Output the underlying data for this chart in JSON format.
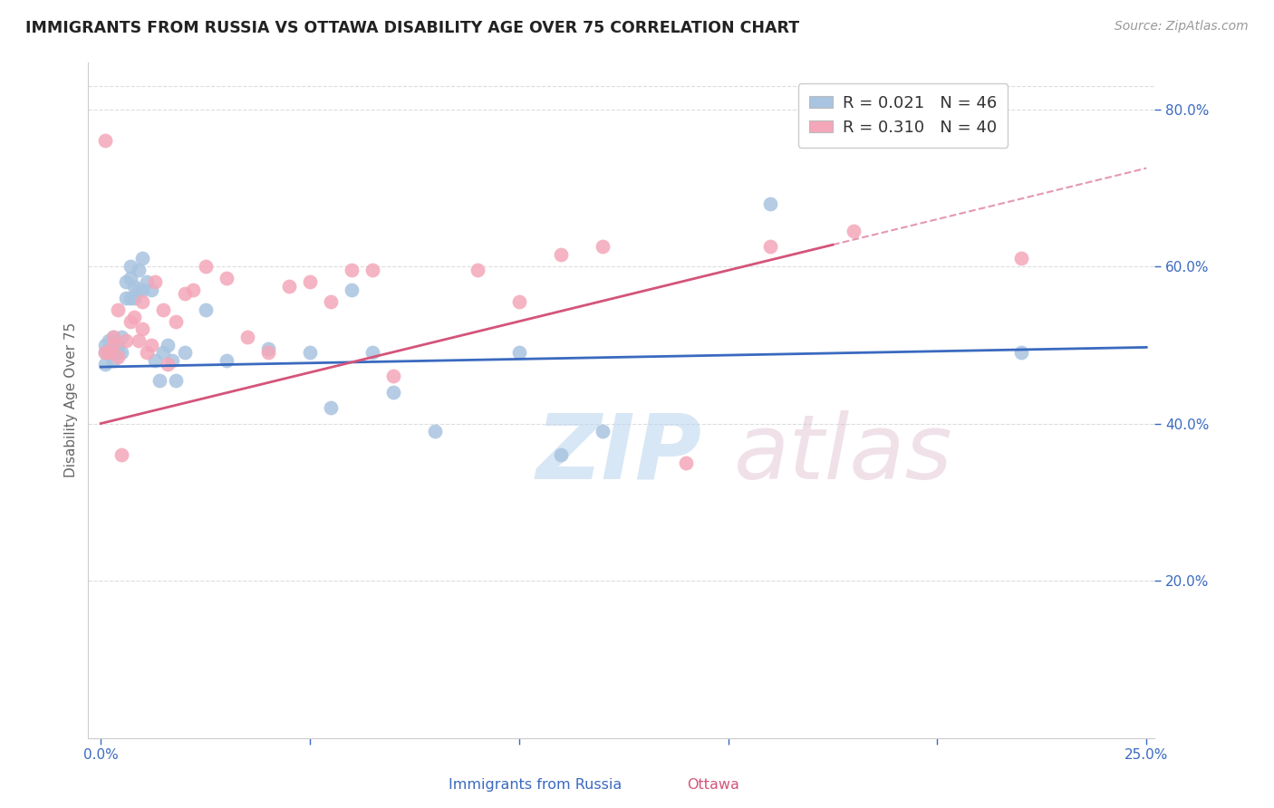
{
  "title": "IMMIGRANTS FROM RUSSIA VS OTTAWA DISABILITY AGE OVER 75 CORRELATION CHART",
  "source": "Source: ZipAtlas.com",
  "xlabel_blue": "Immigrants from Russia",
  "xlabel_pink": "Ottawa",
  "ylabel": "Disability Age Over 75",
  "r_blue": 0.021,
  "n_blue": 46,
  "r_pink": 0.31,
  "n_pink": 40,
  "blue_color": "#a8c4e0",
  "pink_color": "#f4a7b9",
  "blue_line_color": "#3a6abf",
  "pink_line_color": "#d4547a",
  "title_color": "#222222",
  "axis_label_color": "#666666",
  "tick_color": "#3a6abf",
  "grid_color": "#dddddd",
  "blue_x": [
    0.001,
    0.001,
    0.001,
    0.002,
    0.002,
    0.003,
    0.003,
    0.003,
    0.004,
    0.004,
    0.005,
    0.005,
    0.006,
    0.006,
    0.007,
    0.007,
    0.007,
    0.008,
    0.008,
    0.009,
    0.009,
    0.01,
    0.01,
    0.011,
    0.012,
    0.013,
    0.014,
    0.015,
    0.016,
    0.017,
    0.018,
    0.02,
    0.025,
    0.03,
    0.04,
    0.05,
    0.055,
    0.06,
    0.065,
    0.07,
    0.08,
    0.1,
    0.11,
    0.12,
    0.16,
    0.22
  ],
  "blue_y": [
    0.475,
    0.49,
    0.5,
    0.49,
    0.505,
    0.48,
    0.495,
    0.51,
    0.49,
    0.5,
    0.49,
    0.51,
    0.56,
    0.58,
    0.56,
    0.585,
    0.6,
    0.56,
    0.575,
    0.595,
    0.57,
    0.57,
    0.61,
    0.58,
    0.57,
    0.48,
    0.455,
    0.49,
    0.5,
    0.48,
    0.455,
    0.49,
    0.545,
    0.48,
    0.495,
    0.49,
    0.42,
    0.57,
    0.49,
    0.44,
    0.39,
    0.49,
    0.36,
    0.39,
    0.68,
    0.49
  ],
  "pink_x": [
    0.001,
    0.001,
    0.002,
    0.003,
    0.003,
    0.004,
    0.004,
    0.005,
    0.006,
    0.007,
    0.008,
    0.009,
    0.01,
    0.01,
    0.011,
    0.012,
    0.013,
    0.015,
    0.016,
    0.018,
    0.02,
    0.022,
    0.025,
    0.03,
    0.035,
    0.04,
    0.045,
    0.05,
    0.055,
    0.06,
    0.065,
    0.07,
    0.09,
    0.1,
    0.11,
    0.12,
    0.14,
    0.16,
    0.18,
    0.22
  ],
  "pink_y": [
    0.49,
    0.76,
    0.49,
    0.51,
    0.5,
    0.485,
    0.545,
    0.36,
    0.505,
    0.53,
    0.535,
    0.505,
    0.555,
    0.52,
    0.49,
    0.5,
    0.58,
    0.545,
    0.475,
    0.53,
    0.565,
    0.57,
    0.6,
    0.585,
    0.51,
    0.49,
    0.575,
    0.58,
    0.555,
    0.595,
    0.595,
    0.46,
    0.595,
    0.555,
    0.615,
    0.625,
    0.35,
    0.625,
    0.645,
    0.61
  ],
  "pink_line_intercept": 0.4,
  "pink_line_slope": 1.3,
  "blue_line_intercept": 0.472,
  "blue_line_slope": 0.1
}
